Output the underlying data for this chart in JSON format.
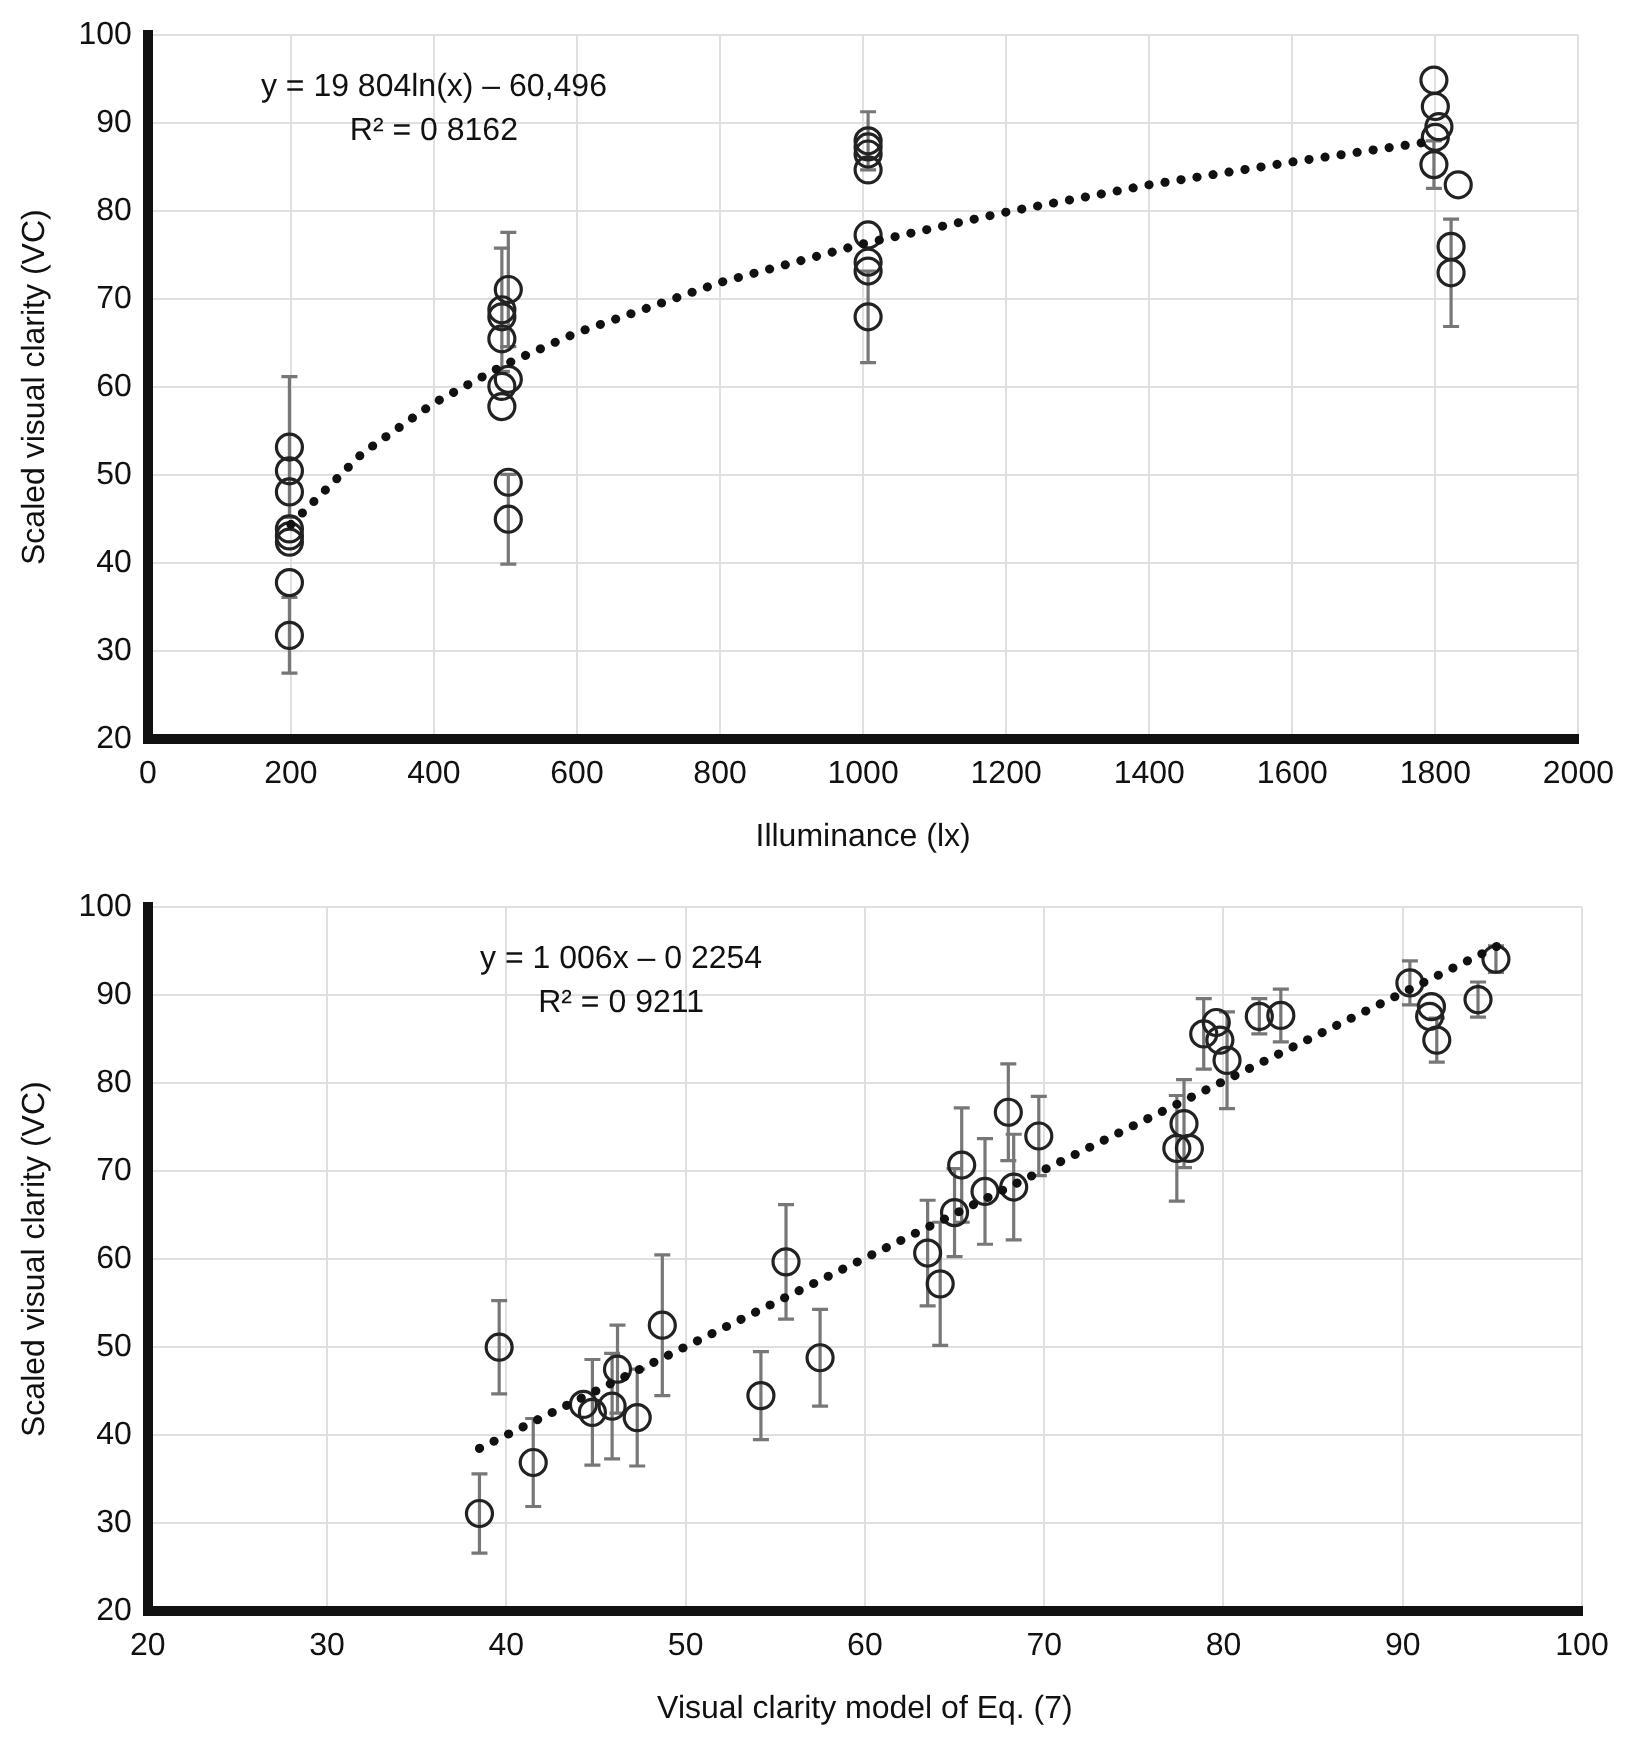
{
  "chart_data": [
    {
      "type": "scatter",
      "xlabel": "Illuminance (lx)",
      "ylabel": "Scaled visual clarity (VC)",
      "annotations": [
        "y = 19 804ln(x) – 60,496",
        "R² = 0 8162"
      ],
      "xlim": [
        0,
        2000
      ],
      "xticks": [
        0,
        200,
        400,
        600,
        800,
        1000,
        1200,
        1400,
        1600,
        1800,
        2000
      ],
      "ylim": [
        20,
        100
      ],
      "yticks": [
        20,
        30,
        40,
        50,
        60,
        70,
        80,
        90,
        100
      ],
      "grid": true,
      "legend": false,
      "series": [
        {
          "color": "#222222",
          "marker": "circle",
          "x": [
            198,
            198,
            198,
            198,
            198,
            198,
            198,
            198,
            504,
            495,
            495,
            495,
            504,
            495,
            495,
            504,
            504,
            1007,
            1007,
            1007,
            1007,
            1007,
            1007,
            1007,
            1007,
            1798,
            1800,
            1805,
            1800,
            1798,
            1832,
            1822,
            1822
          ],
          "values": [
            53.2,
            50.5,
            48.1,
            43.9,
            43.1,
            42.4,
            37.8,
            31.8,
            71.1,
            68.8,
            68.0,
            65.5,
            60.9,
            60.1,
            57.8,
            49.2,
            45.0,
            88.0,
            87.3,
            86.5,
            84.7,
            77.3,
            74.2,
            73.2,
            68.0,
            94.9,
            91.9,
            89.6,
            88.4,
            85.3,
            83.0,
            76.0,
            73.0
          ],
          "errors": [
            8,
            null,
            null,
            null,
            null,
            null,
            null,
            4.3,
            6.5,
            7,
            null,
            null,
            null,
            null,
            null,
            null,
            5.1,
            3.3,
            null,
            null,
            null,
            null,
            null,
            null,
            5.2,
            null,
            null,
            null,
            null,
            2.7,
            null,
            null,
            6.1
          ]
        },
        {
          "type": "line",
          "color": "#111111",
          "marker": "none",
          "line_style": "dotted",
          "x": [
            200,
            300,
            400,
            500,
            600,
            800,
            1000,
            1200,
            1400,
            1600,
            1800
          ],
          "values": [
            44.4,
            52.5,
            58.2,
            62.6,
            66.2,
            71.9,
            76.3,
            79.9,
            83.0,
            85.6,
            88.0
          ]
        }
      ]
    },
    {
      "type": "scatter",
      "xlabel": "Visual clarity model of Eq. (7)",
      "ylabel": "Scaled visual clarity (VC)",
      "annotations": [
        "y = 1 006x – 0 2254",
        "R² = 0 9211"
      ],
      "xlim": [
        20,
        100
      ],
      "xticks": [
        20,
        30,
        40,
        50,
        60,
        70,
        80,
        90,
        100
      ],
      "ylim": [
        20,
        100
      ],
      "yticks": [
        20,
        30,
        40,
        50,
        60,
        70,
        80,
        90,
        100
      ],
      "grid": true,
      "legend": false,
      "series": [
        {
          "color": "#222222",
          "marker": "circle",
          "x": [
            38.5,
            39.6,
            41.5,
            44.3,
            44.8,
            45.9,
            46.2,
            47.3,
            48.7,
            54.2,
            55.6,
            57.5,
            63.5,
            64.2,
            65.0,
            65.4,
            66.7,
            68.0,
            68.3,
            69.7,
            77.4,
            77.8,
            78.1,
            78.9,
            79.6,
            79.8,
            80.2,
            82.0,
            83.2,
            90.4,
            91.5,
            91.6,
            91.9,
            94.2,
            95.2
          ],
          "values": [
            31.1,
            50.0,
            36.9,
            43.5,
            42.6,
            43.3,
            47.5,
            42.0,
            52.5,
            44.5,
            59.7,
            48.8,
            60.7,
            57.2,
            65.3,
            70.7,
            67.7,
            76.7,
            68.2,
            74.0,
            72.6,
            75.4,
            72.6,
            85.6,
            86.9,
            84.9,
            82.6,
            87.6,
            87.7,
            91.4,
            87.6,
            88.7,
            84.9,
            89.5,
            94.1
          ],
          "errors": [
            4.5,
            5.3,
            5,
            null,
            6,
            6,
            5,
            5.5,
            8,
            5,
            6.5,
            5.5,
            6,
            7,
            5,
            6.5,
            6,
            5.5,
            6,
            4.5,
            6,
            5,
            null,
            4,
            null,
            null,
            5.5,
            2,
            3,
            2.5,
            null,
            null,
            2.5,
            2,
            1.5
          ]
        },
        {
          "type": "line",
          "color": "#111111",
          "marker": "none",
          "line_style": "dotted",
          "x": [
            38.5,
            95.3
          ],
          "values": [
            38.5,
            95.6
          ]
        }
      ]
    }
  ]
}
